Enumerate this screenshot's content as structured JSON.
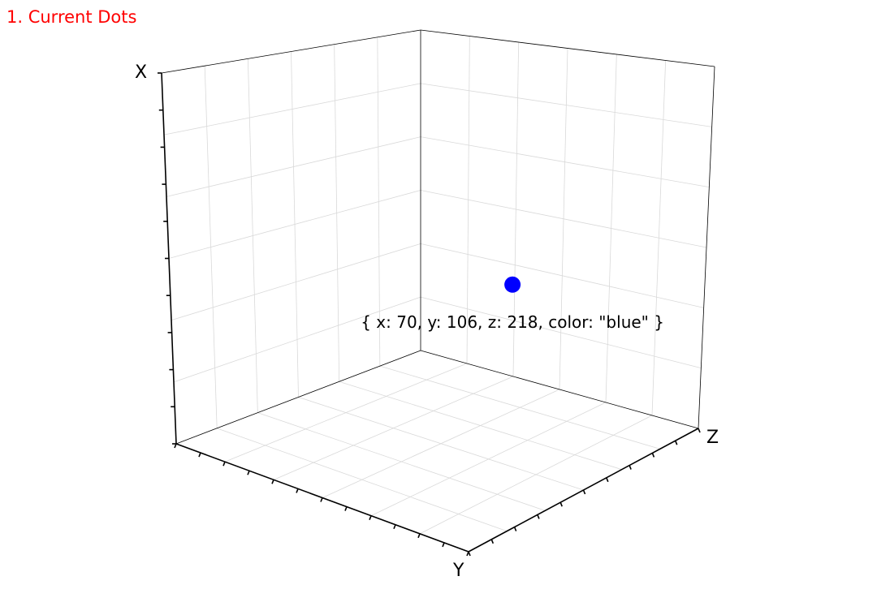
{
  "title": "1. Current Dots",
  "title_color": "#ff0000",
  "chart_data": {
    "type": "scatter",
    "axes": [
      "X",
      "Y",
      "Z"
    ],
    "xlabel": "X",
    "ylabel": "Y",
    "zlabel": "Z",
    "grid": true,
    "points": [
      {
        "x": 70,
        "y": 106,
        "z": 218,
        "color": "blue",
        "label": "{ x: 70, y: 106, z: 218, color: \"blue\" }"
      }
    ]
  }
}
